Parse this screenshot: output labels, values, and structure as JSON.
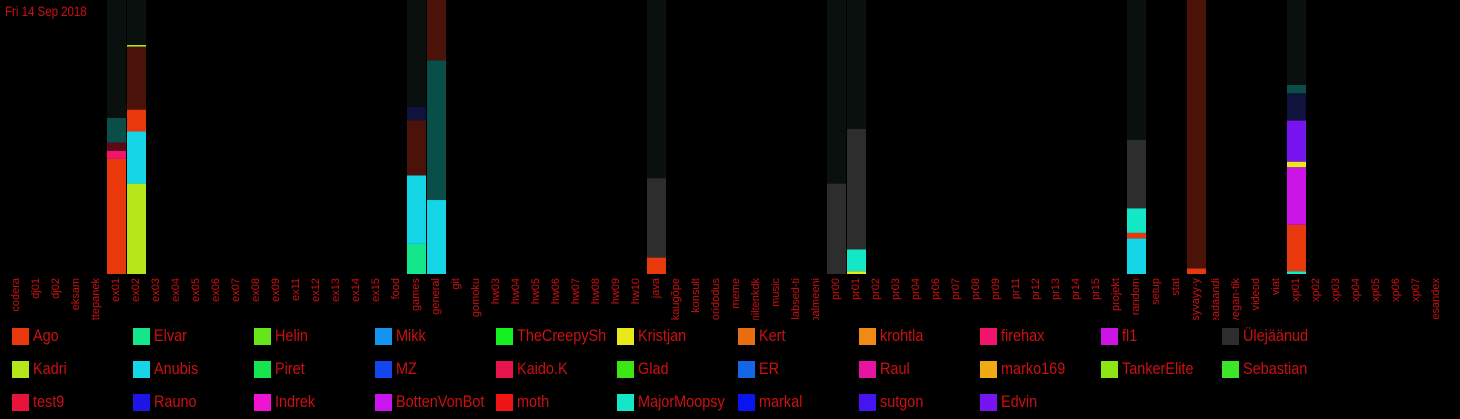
{
  "date_label": "Fri 14 Sep 2018",
  "chart_data": {
    "type": "bar",
    "stacked": true,
    "ylim": [
      0,
      100
    ],
    "categories": [
      "codera",
      "dj01",
      "dj02",
      "eksam",
      "ettepanek",
      "ex01",
      "ex02",
      "ex03",
      "ex04",
      "ex05",
      "ex06",
      "ex07",
      "ex08",
      "ex09",
      "ex11",
      "ex12",
      "ex13",
      "ex14",
      "ex15",
      "food",
      "games",
      "general",
      "git",
      "gomoku",
      "hw03",
      "hw04",
      "hw05",
      "hw06",
      "hw07",
      "hw08",
      "hw09",
      "hw10",
      "java",
      "kaugõpe",
      "konsult",
      "koridodus",
      "meme",
      "miltenkdk",
      "music",
      "ollabsed-ti",
      "palmeeni",
      "pr00",
      "pr01",
      "pr02",
      "pr03",
      "pr04",
      "pr06",
      "pr07",
      "pr08",
      "pr09",
      "pr11",
      "pr12",
      "pr13",
      "pr14",
      "pr15",
      "projekt",
      "random",
      "setup",
      "stat",
      "syvayy-y",
      "teadaandi",
      "vegan-tik",
      "videod",
      "viat",
      "xp01",
      "xp02",
      "xp03",
      "xp04",
      "xp05",
      "xp06",
      "xp07",
      "üldesandex"
    ],
    "series_colors": {
      "Ago": "#e8380c",
      "Elvar": "#14e68c",
      "Helin": "#66e619",
      "Mikk": "#1493f0",
      "TheCreepySh": "#14f020",
      "Kristjan": "#e8e81a",
      "Kert": "#e86c10",
      "krohtla": "#f08a14",
      "firehax": "#f0146c",
      "fl1": "#cc14e6",
      "Ülejäänud": "#2d2d2d",
      "Kadri": "#b4e61a",
      "Anubis": "#14d6e6",
      "Piret": "#14e650",
      "MZ": "#1446f0",
      "Kaido.K": "#e6144c",
      "Glad": "#3ce614",
      "ER": "#1466e6",
      "Raul": "#e614a0",
      "marko169": "#f0aa14",
      "TankerElite": "#8ce614",
      "Sebastian": "#3ce628",
      "test9": "#e6143c",
      "Rauno": "#1e14e6",
      "Indrek": "#f014d2",
      "BottenVonBot": "#cc14f0",
      "moth": "#f01414",
      "MajorMoopsy": "#14e6c8",
      "markal": "#0a14f0",
      "sutgon": "#4614f0",
      "Edvin": "#7814f0",
      "bg_dark": "#0a100e",
      "bg_teal": "#0a4e4a",
      "bg_navy": "#10143c",
      "bg_brown": "#4a1208",
      "bg_maroon": "#5a0a14"
    },
    "bars": [
      {
        "category": "ex01",
        "segments": [
          {
            "series": "Ago",
            "value": 42
          },
          {
            "series": "firehax",
            "value": 3
          },
          {
            "series": "bg_maroon",
            "value": 3
          },
          {
            "series": "bg_teal",
            "value": 9
          },
          {
            "series": "bg_dark",
            "value": 43
          }
        ]
      },
      {
        "category": "ex02",
        "segments": [
          {
            "series": "Kadri",
            "value": 33
          },
          {
            "series": "Anubis",
            "value": 19
          },
          {
            "series": "Ago",
            "value": 8
          },
          {
            "series": "bg_brown",
            "value": 23
          },
          {
            "series": "Kadri",
            "value": 0.6
          },
          {
            "series": "bg_dark",
            "value": 16.4
          }
        ]
      },
      {
        "category": "games",
        "segments": [
          {
            "series": "Elvar",
            "value": 11
          },
          {
            "series": "Anubis",
            "value": 25
          },
          {
            "series": "bg_brown",
            "value": 20
          },
          {
            "series": "bg_navy",
            "value": 5
          },
          {
            "series": "bg_dark",
            "value": 39
          }
        ]
      },
      {
        "category": "general",
        "segments": [
          {
            "series": "Anubis",
            "value": 27
          },
          {
            "series": "bg_teal",
            "value": 51
          },
          {
            "series": "bg_brown",
            "value": 22
          }
        ]
      },
      {
        "category": "java",
        "segments": [
          {
            "series": "Ago",
            "value": 6
          },
          {
            "series": "Ülejäänud",
            "value": 29
          },
          {
            "series": "bg_dark",
            "value": 65
          }
        ]
      },
      {
        "category": "pr00",
        "segments": [
          {
            "series": "Ülejäänud",
            "value": 33
          },
          {
            "series": "bg_dark",
            "value": 67
          }
        ]
      },
      {
        "category": "pr01",
        "segments": [
          {
            "series": "Kristjan",
            "value": 1
          },
          {
            "series": "MajorMoopsy",
            "value": 8
          },
          {
            "series": "Ülejäänud",
            "value": 44
          },
          {
            "series": "bg_dark",
            "value": 47
          }
        ]
      },
      {
        "category": "random",
        "segments": [
          {
            "series": "Anubis",
            "value": 13
          },
          {
            "series": "Ago",
            "value": 2
          },
          {
            "series": "MajorMoopsy",
            "value": 9
          },
          {
            "series": "Ülejäänud",
            "value": 25
          },
          {
            "series": "bg_dark",
            "value": 51
          }
        ]
      },
      {
        "category": "syvayy-y",
        "segments": [
          {
            "series": "Ago",
            "value": 2
          },
          {
            "series": "bg_brown",
            "value": 98
          }
        ]
      },
      {
        "category": "xp01",
        "segments": [
          {
            "series": "MajorMoopsy",
            "value": 1
          },
          {
            "series": "Ago",
            "value": 17
          },
          {
            "series": "fl1",
            "value": 21
          },
          {
            "series": "Kristjan",
            "value": 2
          },
          {
            "series": "Edvin",
            "value": 15
          },
          {
            "series": "bg_navy",
            "value": 10
          },
          {
            "series": "bg_teal",
            "value": 3
          },
          {
            "series": "bg_dark",
            "value": 31
          }
        ]
      }
    ],
    "legend": [
      "Ago",
      "Elvar",
      "Helin",
      "Mikk",
      "TheCreepySh",
      "Kristjan",
      "Kert",
      "krohtla",
      "firehax",
      "fl1",
      "Ülejäänud",
      "Kadri",
      "Anubis",
      "Piret",
      "MZ",
      "Kaido.K",
      "Glad",
      "ER",
      "Raul",
      "marko169",
      "TankerElite",
      "Sebastian",
      "test9",
      "Rauno",
      "Indrek",
      "BottenVonBot",
      "moth",
      "MajorMoopsy",
      "markal",
      "sutgon",
      "Edvin"
    ],
    "label_color": "#cc1010",
    "background": "#000000"
  }
}
